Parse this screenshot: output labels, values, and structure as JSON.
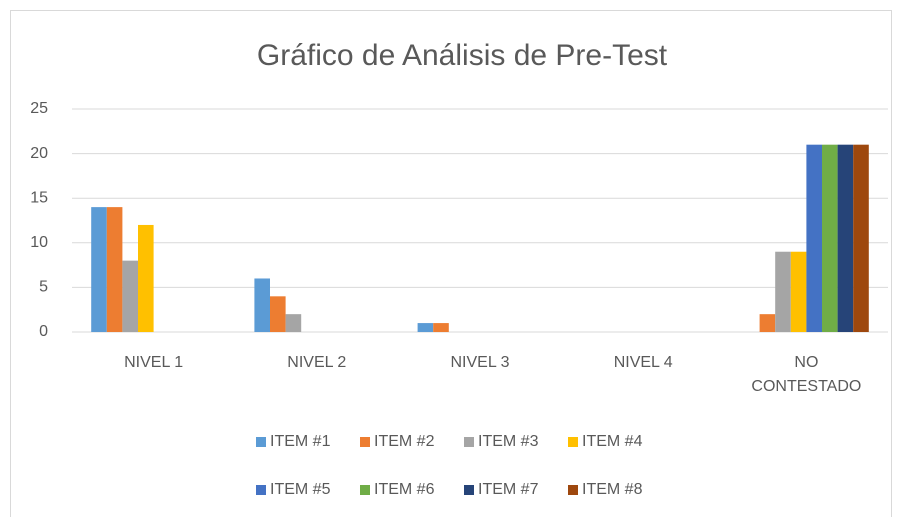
{
  "chart_data": {
    "type": "bar",
    "title": "Gráfico de Análisis de Pre-Test",
    "categories": [
      "NIVEL 1",
      "NIVEL 2",
      "NIVEL 3",
      "NIVEL 4",
      "NO CONTESTADO"
    ],
    "series": [
      {
        "name": "ITEM #1",
        "color": "#5b9bd5",
        "values": [
          14,
          6,
          1,
          0,
          0
        ]
      },
      {
        "name": "ITEM #2",
        "color": "#ed7d31",
        "values": [
          14,
          4,
          1,
          0,
          2
        ]
      },
      {
        "name": "ITEM #3",
        "color": "#a5a5a5",
        "values": [
          8,
          2,
          0,
          0,
          9
        ]
      },
      {
        "name": "ITEM #4",
        "color": "#ffc000",
        "values": [
          12,
          0,
          0,
          0,
          9
        ]
      },
      {
        "name": "ITEM #5",
        "color": "#4472c4",
        "values": [
          0,
          0,
          0,
          0,
          21
        ]
      },
      {
        "name": "ITEM #6",
        "color": "#70ad47",
        "values": [
          0,
          0,
          0,
          0,
          21
        ]
      },
      {
        "name": "ITEM #7",
        "color": "#264478",
        "values": [
          0,
          0,
          0,
          0,
          21
        ]
      },
      {
        "name": "ITEM #8",
        "color": "#9e480e",
        "values": [
          0,
          0,
          0,
          0,
          21
        ]
      }
    ],
    "ylim": [
      0,
      25
    ],
    "yticks": [
      0,
      5,
      10,
      15,
      20,
      25
    ],
    "grid": true,
    "legend": "bottom"
  }
}
